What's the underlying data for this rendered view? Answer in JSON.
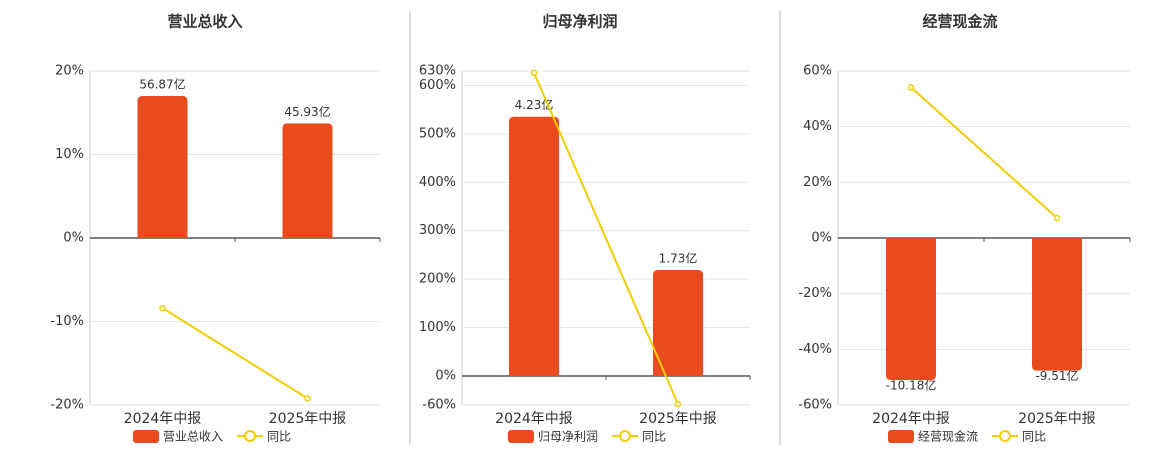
{
  "chart_data": [
    {
      "type": "bar",
      "title": "营业总收入",
      "categories": [
        "2024年中报",
        "2025年中报"
      ],
      "series": [
        {
          "name": "营业总收入",
          "color": "#e84c1e",
          "values": [
            56.87,
            45.93
          ],
          "value_labels": [
            "56.87亿",
            "45.93亿"
          ]
        },
        {
          "name": "同比",
          "type": "line",
          "color": "#f2cd00",
          "values": [
            -8.4,
            -19.2
          ]
        }
      ],
      "ylim": [
        -20,
        20
      ],
      "yticks": [
        {
          "value": -20,
          "label": "-20%"
        },
        {
          "value": -10,
          "label": "-10%"
        },
        {
          "value": 0,
          "label": "0%"
        },
        {
          "value": 10,
          "label": "10%"
        },
        {
          "value": 20,
          "label": "20%"
        }
      ],
      "grid": true
    },
    {
      "type": "bar",
      "title": "归母净利润",
      "categories": [
        "2024年中报",
        "2025年中报"
      ],
      "series": [
        {
          "name": "归母净利润",
          "color": "#e84c1e",
          "values": [
            4.23,
            1.73
          ],
          "value_labels": [
            "4.23亿",
            "1.73亿"
          ]
        },
        {
          "name": "同比",
          "type": "line",
          "color": "#f2cd00",
          "values": [
            626,
            -58
          ]
        }
      ],
      "ylim": [
        -60,
        630
      ],
      "yticks": [
        {
          "value": -60,
          "label": "-60%"
        },
        {
          "value": 0,
          "label": "0%"
        },
        {
          "value": 100,
          "label": "100%"
        },
        {
          "value": 200,
          "label": "200%"
        },
        {
          "value": 300,
          "label": "300%"
        },
        {
          "value": 400,
          "label": "400%"
        },
        {
          "value": 500,
          "label": "500%"
        },
        {
          "value": 600,
          "label": "600%"
        },
        {
          "value": 630,
          "label": "630%"
        }
      ],
      "grid": true
    },
    {
      "type": "bar",
      "title": "经营现金流",
      "categories": [
        "2024年中报",
        "2025年中报"
      ],
      "series": [
        {
          "name": "经营现金流",
          "color": "#e84c1e",
          "values": [
            -10.18,
            -9.51
          ],
          "value_labels": [
            "-10.18亿",
            "-9.51亿"
          ]
        },
        {
          "name": "同比",
          "type": "line",
          "color": "#f2cd00",
          "values": [
            54.1,
            7.2
          ]
        }
      ],
      "ylim": [
        -60,
        60
      ],
      "yticks": [
        {
          "value": -60,
          "label": "-60%"
        },
        {
          "value": -40,
          "label": "-40%"
        },
        {
          "value": -20,
          "label": "-20%"
        },
        {
          "value": 0,
          "label": "0%"
        },
        {
          "value": 20,
          "label": "20%"
        },
        {
          "value": 40,
          "label": "40%"
        },
        {
          "value": 60,
          "label": "60%"
        }
      ],
      "grid": true
    }
  ]
}
